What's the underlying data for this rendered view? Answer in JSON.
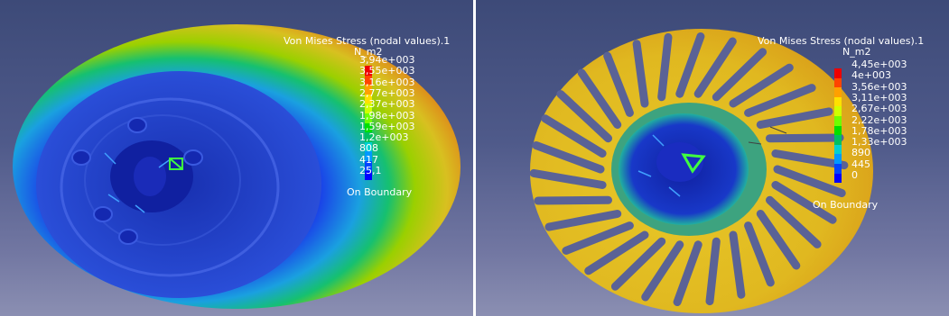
{
  "colors": {
    "background_top": "#3d4a78",
    "background_bottom": "#8b8fb2",
    "scale": [
      "#0000ff",
      "#0044ff",
      "#0099ff",
      "#00d0d0",
      "#00c060",
      "#00e000",
      "#70ff00",
      "#d0ff00",
      "#ffe000",
      "#ffa000",
      "#ff4400",
      "#ee0000"
    ]
  },
  "views": [
    {
      "legend": {
        "title": "Von Mises Stress (nodal values).1",
        "unit": "N_m2",
        "values": [
          "3,94e+003",
          "3,55e+003",
          "3,16e+003",
          "2,77e+003",
          "2,37e+003",
          "1,98e+003",
          "1,59e+003",
          "1,2e+003",
          "808",
          "417",
          "25,1"
        ],
        "boundary": "On Boundary"
      }
    },
    {
      "legend": {
        "title": "Von Mises Stress (nodal values).1",
        "unit": "N_m2",
        "values": [
          "4,45e+003",
          "4e+003",
          "3,56e+003",
          "3,11e+003",
          "2,67e+003",
          "2,22e+003",
          "1,78e+003",
          "1,33e+003",
          "890",
          "445",
          "0"
        ],
        "boundary": "On Boundary"
      }
    }
  ]
}
